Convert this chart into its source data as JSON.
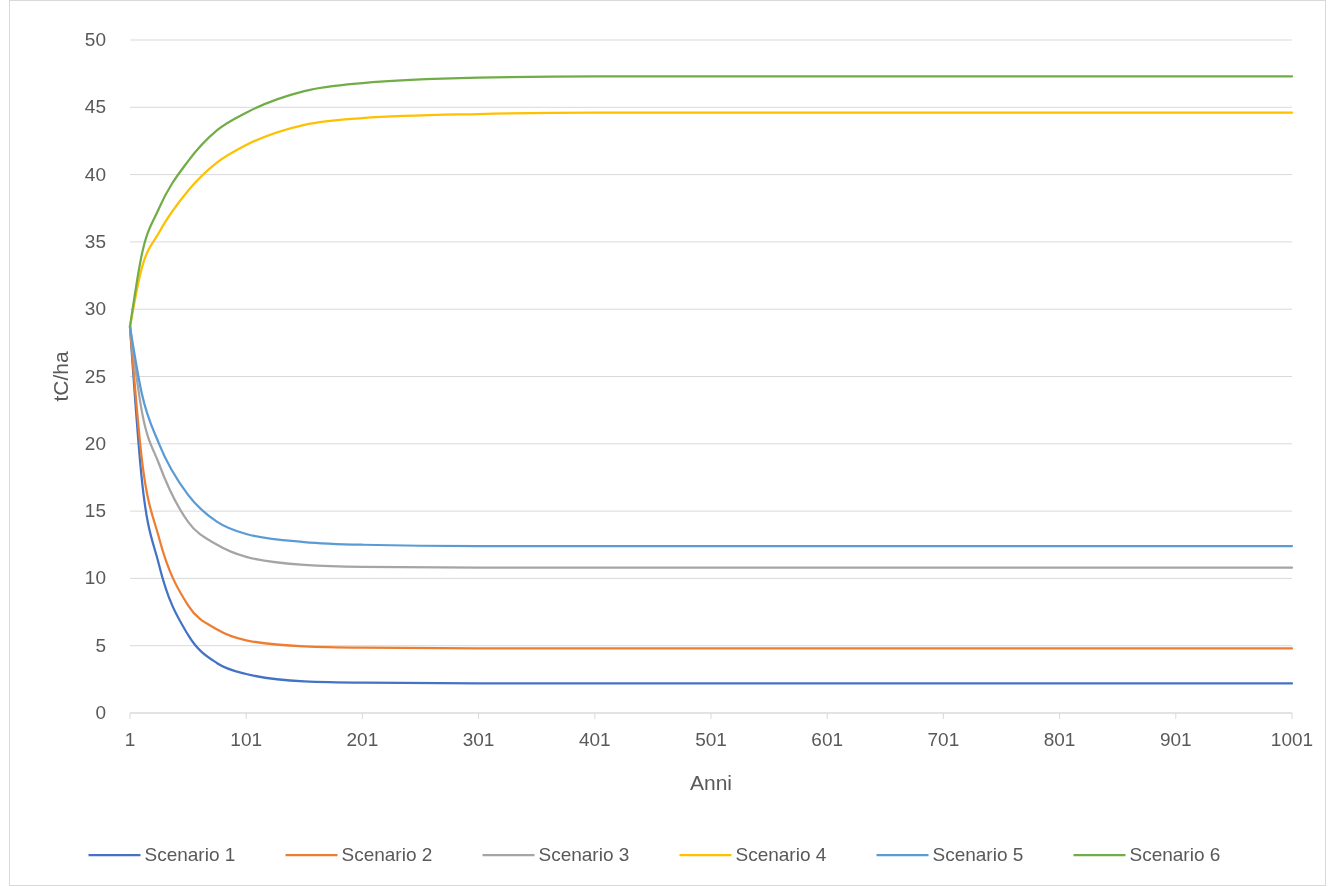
{
  "chart_data": {
    "type": "line",
    "xlabel": "Anni",
    "ylabel": "tC/ha",
    "x": [
      1,
      11,
      26,
      51,
      76,
      101,
      151,
      201,
      301,
      401,
      1001
    ],
    "xlim": [
      1,
      1001
    ],
    "xticks": [
      1,
      101,
      201,
      301,
      401,
      501,
      601,
      701,
      801,
      901,
      1001
    ],
    "ylim": [
      0,
      50
    ],
    "yticks": [
      0,
      5,
      10,
      15,
      20,
      25,
      30,
      35,
      40,
      45,
      50
    ],
    "grid": "y",
    "legend": "bottom",
    "marker": "none",
    "line_style": "solid",
    "series": [
      {
        "name": "Scenario 1",
        "color": "#4472c4",
        "values": [
          28.7,
          17.5,
          11,
          5.8,
          3.7,
          2.9,
          2.35,
          2.25,
          2.2,
          2.2,
          2.2
        ]
      },
      {
        "name": "Scenario 2",
        "color": "#ed7d31",
        "values": [
          28.7,
          19,
          13,
          8,
          6.2,
          5.4,
          4.95,
          4.85,
          4.8,
          4.8,
          4.8
        ]
      },
      {
        "name": "Scenario 3",
        "color": "#a5a5a5",
        "values": [
          28.7,
          22.5,
          18.5,
          14.2,
          12.5,
          11.6,
          11,
          10.85,
          10.8,
          10.8,
          10.8
        ]
      },
      {
        "name": "Scenario 4",
        "color": "#ffc000",
        "values": [
          28.7,
          33,
          35.7,
          38.8,
          40.9,
          42.2,
          43.7,
          44.2,
          44.5,
          44.6,
          44.6
        ]
      },
      {
        "name": "Scenario 5",
        "color": "#5b9bd5",
        "values": [
          28.7,
          23.8,
          20,
          16.2,
          14.2,
          13.3,
          12.7,
          12.5,
          12.4,
          12.4,
          12.4
        ]
      },
      {
        "name": "Scenario 6",
        "color": "#70ad47",
        "values": [
          28.7,
          34,
          37.5,
          41,
          43.3,
          44.6,
          46.2,
          46.8,
          47.2,
          47.3,
          47.3
        ]
      }
    ]
  }
}
